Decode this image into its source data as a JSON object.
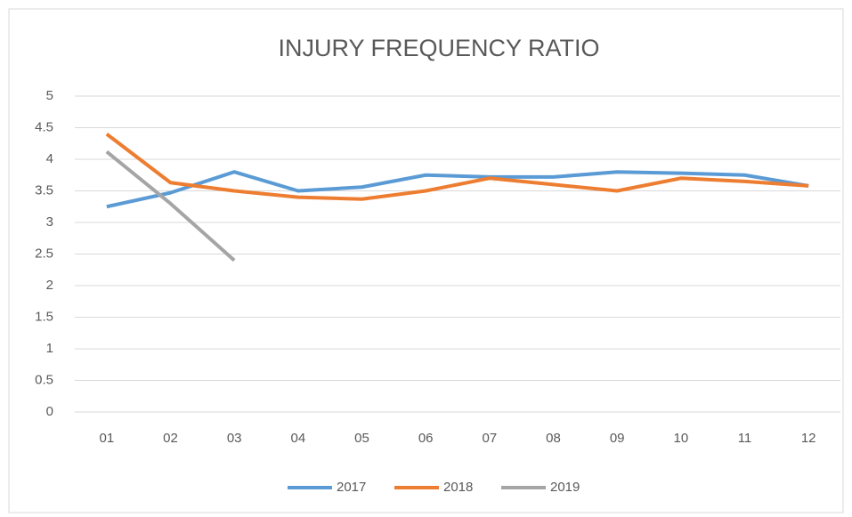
{
  "chart_data": {
    "type": "line",
    "title": "INJURY FREQUENCY RATIO",
    "categories": [
      "01",
      "02",
      "03",
      "04",
      "05",
      "06",
      "07",
      "08",
      "09",
      "10",
      "11",
      "12"
    ],
    "series": [
      {
        "name": "2017",
        "color": "#5b9bd5",
        "values": [
          3.25,
          3.47,
          3.8,
          3.5,
          3.56,
          3.75,
          3.72,
          3.72,
          3.8,
          3.78,
          3.75,
          3.58
        ]
      },
      {
        "name": "2018",
        "color": "#ed7d31",
        "values": [
          4.4,
          3.63,
          3.5,
          3.4,
          3.37,
          3.5,
          3.7,
          3.6,
          3.5,
          3.7,
          3.65,
          3.58
        ]
      },
      {
        "name": "2019",
        "color": "#a5a5a5",
        "values": [
          4.12,
          3.3,
          2.4,
          null,
          null,
          null,
          null,
          null,
          null,
          null,
          null,
          null
        ]
      }
    ],
    "ylim": [
      0,
      5
    ],
    "yticks": [
      0,
      0.5,
      1,
      1.5,
      2,
      2.5,
      3,
      3.5,
      4,
      4.5,
      5
    ],
    "grid": true,
    "legend": "bottom"
  }
}
